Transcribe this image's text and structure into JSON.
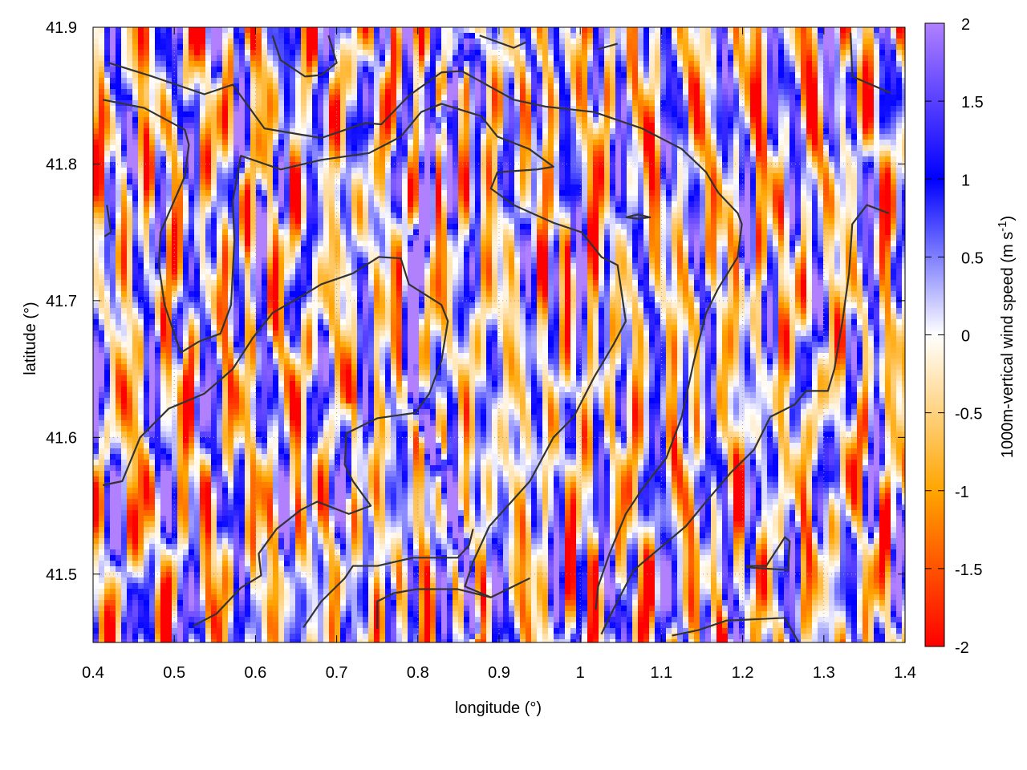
{
  "chart_data": {
    "type": "heatmap",
    "title": "",
    "xlabel": "longitude (°)",
    "ylabel": "latitude (°)",
    "xlim": [
      0.4,
      1.4
    ],
    "ylim": [
      41.45,
      41.9
    ],
    "xticks": [
      "0.4",
      "0.5",
      "0.6",
      "0.7",
      "0.8",
      "0.9",
      "1",
      "1.1",
      "1.2",
      "1.3",
      "1.4"
    ],
    "yticks": [
      "41.5",
      "41.6",
      "41.7",
      "41.8",
      "41.9"
    ],
    "grid": true,
    "colorbar": {
      "label_main": "1000m-vertical wind speed (m s",
      "label_sup": "-1",
      "label_close": ")",
      "range": [
        -2,
        2
      ],
      "ticks": [
        "2",
        "1.5",
        "1",
        "0.5",
        "0",
        "-0.5",
        "-1",
        "-1.5",
        "-2"
      ],
      "colormap": [
        {
          "value": -2,
          "color": "#ff0000"
        },
        {
          "value": -1,
          "color": "#ffa500"
        },
        {
          "value": 0,
          "color": "#ffffff"
        },
        {
          "value": 1,
          "color": "#0000ff"
        },
        {
          "value": 2,
          "color": "#b080ff"
        }
      ],
      "placement": "right"
    },
    "contour_color": "#333333",
    "contours": [
      [
        [
          0.419,
          41.874
        ],
        [
          0.473,
          41.864
        ],
        [
          0.537,
          41.851
        ],
        [
          0.572,
          41.858
        ],
        [
          0.611,
          41.826
        ],
        [
          0.681,
          41.819
        ],
        [
          0.735,
          41.83
        ],
        [
          0.755,
          41.829
        ],
        [
          0.789,
          41.85
        ],
        [
          0.829,
          41.867
        ],
        [
          0.854,
          41.868
        ],
        [
          0.918,
          41.847
        ],
        [
          0.957,
          41.842
        ],
        [
          1.017,
          41.838
        ],
        [
          1.076,
          41.826
        ],
        [
          1.125,
          41.811
        ],
        [
          1.155,
          41.794
        ],
        [
          1.17,
          41.779
        ],
        [
          1.194,
          41.764
        ],
        [
          1.199,
          41.756
        ],
        [
          1.194,
          41.732
        ],
        [
          1.17,
          41.709
        ],
        [
          1.155,
          41.691
        ],
        [
          1.14,
          41.656
        ],
        [
          1.125,
          41.615
        ],
        [
          1.106,
          41.585
        ],
        [
          1.076,
          41.562
        ],
        [
          1.056,
          41.544
        ],
        [
          1.036,
          41.515
        ],
        [
          1.022,
          41.491
        ],
        [
          1.019,
          41.474
        ]
      ],
      [
        [
          0.412,
          41.847
        ],
        [
          0.463,
          41.841
        ],
        [
          0.513,
          41.825
        ],
        [
          0.518,
          41.814
        ],
        [
          0.513,
          41.791
        ],
        [
          0.483,
          41.75
        ],
        [
          0.481,
          41.726
        ],
        [
          0.488,
          41.697
        ],
        [
          0.508,
          41.662
        ],
        [
          0.53,
          41.67
        ],
        [
          0.557,
          41.676
        ],
        [
          0.57,
          41.697
        ],
        [
          0.574,
          41.744
        ],
        [
          0.572,
          41.773
        ],
        [
          0.582,
          41.806
        ],
        [
          0.631,
          41.796
        ],
        [
          0.681,
          41.803
        ],
        [
          0.74,
          41.808
        ],
        [
          0.779,
          41.82
        ],
        [
          0.804,
          41.838
        ],
        [
          0.829,
          41.844
        ],
        [
          0.878,
          41.835
        ],
        [
          0.898,
          41.82
        ],
        [
          0.937,
          41.811
        ],
        [
          0.967,
          41.798
        ],
        [
          0.947,
          41.796
        ],
        [
          0.898,
          41.794
        ],
        [
          0.89,
          41.782
        ],
        [
          0.918,
          41.77
        ],
        [
          0.967,
          41.757
        ],
        [
          1.002,
          41.75
        ],
        [
          1.026,
          41.732
        ],
        [
          1.046,
          41.726
        ],
        [
          1.056,
          41.685
        ],
        [
          1.041,
          41.668
        ],
        [
          1.017,
          41.644
        ],
        [
          0.992,
          41.615
        ],
        [
          0.967,
          41.6
        ],
        [
          0.938,
          41.568
        ],
        [
          0.888,
          41.535
        ],
        [
          0.868,
          41.509
        ],
        [
          0.858,
          41.491
        ],
        [
          0.89,
          41.483
        ],
        [
          0.938,
          41.497
        ]
      ],
      [
        [
          0.412,
          41.565
        ],
        [
          0.436,
          41.568
        ],
        [
          0.458,
          41.6
        ],
        [
          0.493,
          41.621
        ],
        [
          0.537,
          41.632
        ],
        [
          0.572,
          41.65
        ],
        [
          0.597,
          41.673
        ],
        [
          0.621,
          41.691
        ],
        [
          0.656,
          41.703
        ],
        [
          0.681,
          41.712
        ],
        [
          0.72,
          41.72
        ],
        [
          0.752,
          41.732
        ],
        [
          0.779,
          41.731
        ],
        [
          0.789,
          41.712
        ],
        [
          0.829,
          41.697
        ],
        [
          0.837,
          41.685
        ],
        [
          0.829,
          41.656
        ],
        [
          0.814,
          41.632
        ],
        [
          0.797,
          41.618
        ],
        [
          0.75,
          41.614
        ],
        [
          0.712,
          41.603
        ],
        [
          0.71,
          41.58
        ],
        [
          0.72,
          41.568
        ],
        [
          0.742,
          41.55
        ],
        [
          0.715,
          41.544
        ],
        [
          0.676,
          41.553
        ],
        [
          0.656,
          41.547
        ],
        [
          0.626,
          41.533
        ],
        [
          0.604,
          41.515
        ],
        [
          0.607,
          41.499
        ],
        [
          0.582,
          41.49
        ],
        [
          0.552,
          41.471
        ],
        [
          0.523,
          41.462
        ]
      ],
      [
        [
          0.659,
          41.461
        ],
        [
          0.681,
          41.48
        ],
        [
          0.71,
          41.497
        ],
        [
          0.72,
          41.506
        ],
        [
          0.75,
          41.506
        ],
        [
          0.794,
          41.512
        ],
        [
          0.849,
          41.512
        ],
        [
          0.863,
          41.521
        ],
        [
          0.868,
          41.533
        ]
      ],
      [
        [
          0.75,
          41.46
        ],
        [
          0.75,
          41.48
        ],
        [
          0.77,
          41.486
        ],
        [
          0.799,
          41.489
        ],
        [
          0.849,
          41.489
        ],
        [
          0.89,
          41.483
        ]
      ],
      [
        [
          1.113,
          41.455
        ],
        [
          1.145,
          41.459
        ],
        [
          1.18,
          41.466
        ],
        [
          1.252,
          41.468
        ],
        [
          1.269,
          41.45
        ]
      ],
      [
        [
          1.38,
          41.764
        ],
        [
          1.353,
          41.77
        ],
        [
          1.335,
          41.756
        ],
        [
          1.331,
          41.72
        ],
        [
          1.323,
          41.685
        ],
        [
          1.318,
          41.668
        ],
        [
          1.313,
          41.65
        ],
        [
          1.305,
          41.634
        ],
        [
          1.278,
          41.634
        ],
        [
          1.264,
          41.624
        ],
        [
          1.234,
          41.615
        ],
        [
          1.214,
          41.591
        ],
        [
          1.185,
          41.574
        ],
        [
          1.155,
          41.553
        ],
        [
          1.13,
          41.535
        ],
        [
          1.096,
          41.518
        ],
        [
          1.066,
          41.503
        ],
        [
          1.051,
          41.486
        ],
        [
          1.038,
          41.471
        ],
        [
          1.026,
          41.456
        ]
      ],
      [
        [
          1.204,
          41.506
        ],
        [
          1.229,
          41.506
        ],
        [
          1.252,
          41.527
        ],
        [
          1.258,
          41.524
        ],
        [
          1.256,
          41.503
        ],
        [
          1.204,
          41.505
        ]
      ],
      [
        [
          0.621,
          41.894
        ],
        [
          0.631,
          41.876
        ],
        [
          0.661,
          41.864
        ],
        [
          0.681,
          41.865
        ],
        [
          0.7,
          41.874
        ],
        [
          0.69,
          41.894
        ]
      ],
      [
        [
          1.333,
          41.896
        ],
        [
          1.335,
          41.864
        ],
        [
          1.382,
          41.852
        ]
      ],
      [
        [
          0.876,
          41.894
        ],
        [
          0.918,
          41.885
        ],
        [
          0.933,
          41.889
        ]
      ],
      [
        [
          1.022,
          41.884
        ],
        [
          1.046,
          41.888
        ]
      ],
      [
        [
          1.056,
          41.761
        ],
        [
          1.071,
          41.763
        ],
        [
          1.086,
          41.761
        ],
        [
          1.071,
          41.76
        ],
        [
          1.056,
          41.761
        ]
      ],
      [
        [
          0.417,
          41.77
        ],
        [
          0.422,
          41.75
        ],
        [
          0.414,
          41.747
        ]
      ]
    ]
  }
}
